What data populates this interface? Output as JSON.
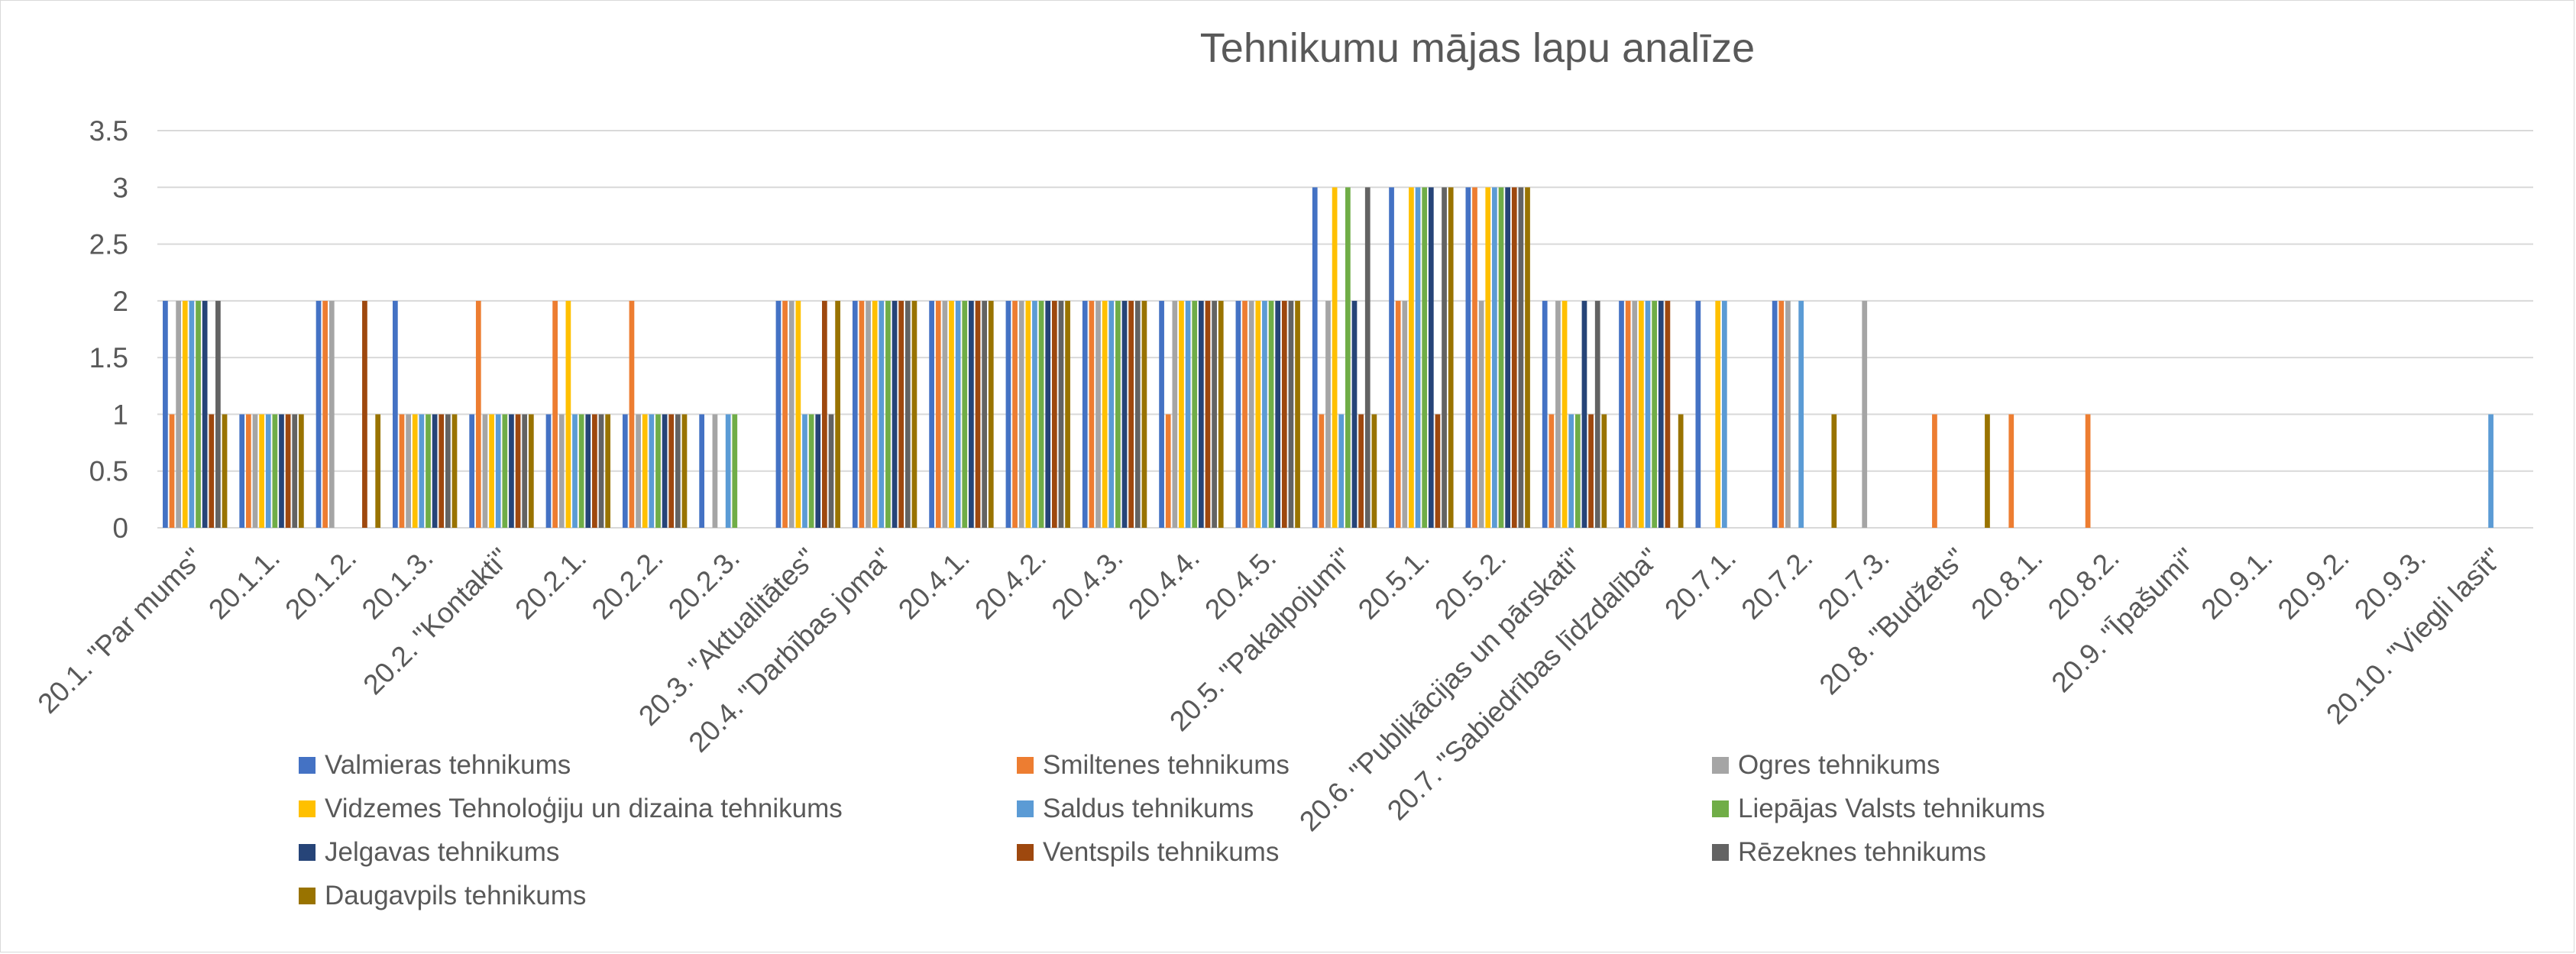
{
  "chart_data": {
    "type": "bar",
    "title": "Tehnikumu mājas lapu analīze",
    "xlabel": "",
    "ylabel": "",
    "ylim": [
      0,
      3.5
    ],
    "yticks": [
      0,
      0.5,
      1,
      1.5,
      2,
      2.5,
      3,
      3.5
    ],
    "ytick_labels": [
      "0",
      "0.5",
      "1",
      "1.5",
      "2",
      "2.5",
      "3",
      "3.5"
    ],
    "grid": true,
    "legend_position": "bottom",
    "categories": [
      "20.1. \"Par mums\"",
      "20.1.1.",
      "20.1.2.",
      "20.1.3.",
      "20.2. \"Kontakti\"",
      "20.2.1.",
      "20.2.2.",
      "20.2.3.",
      "20.3. \"Aktualitātes\"",
      "20.4. \"Darbības joma\"",
      "20.4.1.",
      "20.4.2.",
      "20.4.3.",
      "20.4.4.",
      "20.4.5.",
      "20.5. \"Pakalpojumi\"",
      "20.5.1.",
      "20.5.2.",
      "20.6. \"Publikācijas un pārskati\"",
      "20.7. \"Sabiedrības līdzdalība\"",
      "20.7.1.",
      "20.7.2.",
      "20.7.3.",
      "20.8. \"Budžets\"",
      "20.8.1.",
      "20.8.2.",
      "20.9. \"Īpašumi\"",
      "20.9.1.",
      "20.9.2.",
      "20.9.3.",
      "20.10. \"Viegli lasīt\""
    ],
    "series": [
      {
        "name": "Valmieras tehnikums",
        "color": "#4472C4",
        "values": [
          2,
          1,
          2,
          2,
          1,
          1,
          1,
          1,
          2,
          2,
          2,
          2,
          2,
          2,
          2,
          3,
          3,
          3,
          2,
          2,
          2,
          2,
          0,
          0,
          0,
          0,
          0,
          0,
          0,
          0,
          0
        ]
      },
      {
        "name": "Smiltenes tehnikums",
        "color": "#ED7D31",
        "values": [
          1,
          1,
          2,
          1,
          2,
          2,
          2,
          0,
          2,
          2,
          2,
          2,
          2,
          1,
          2,
          1,
          2,
          3,
          1,
          2,
          0,
          2,
          0,
          1,
          1,
          1,
          0,
          0,
          0,
          0,
          0
        ]
      },
      {
        "name": "Ogres tehnikums",
        "color": "#A5A5A5",
        "values": [
          2,
          1,
          2,
          1,
          1,
          1,
          1,
          1,
          2,
          2,
          2,
          2,
          2,
          2,
          2,
          2,
          2,
          2,
          2,
          2,
          0,
          2,
          2,
          0,
          0,
          0,
          0,
          0,
          0,
          0,
          0
        ]
      },
      {
        "name": "Vidzemes Tehnoloģiju un dizaina tehnikums",
        "color": "#FFC000",
        "values": [
          2,
          1,
          0,
          1,
          1,
          2,
          1,
          0,
          2,
          2,
          2,
          2,
          2,
          2,
          2,
          3,
          3,
          3,
          2,
          2,
          2,
          0,
          0,
          0,
          0,
          0,
          0,
          0,
          0,
          0,
          0
        ]
      },
      {
        "name": "Saldus tehnikums",
        "color": "#5B9BD5",
        "values": [
          2,
          1,
          0,
          1,
          1,
          1,
          1,
          1,
          1,
          2,
          2,
          2,
          2,
          2,
          2,
          1,
          3,
          3,
          1,
          2,
          2,
          2,
          0,
          0,
          0,
          0,
          0,
          0,
          0,
          0,
          1
        ]
      },
      {
        "name": "Liepājas Valsts tehnikums",
        "color": "#70AD47",
        "values": [
          2,
          1,
          0,
          1,
          1,
          1,
          1,
          1,
          1,
          2,
          2,
          2,
          2,
          2,
          2,
          3,
          3,
          3,
          1,
          2,
          0,
          0,
          0,
          0,
          0,
          0,
          0,
          0,
          0,
          0,
          0
        ]
      },
      {
        "name": "Jelgavas tehnikums",
        "color": "#264478",
        "values": [
          2,
          1,
          0,
          1,
          1,
          1,
          1,
          0,
          1,
          2,
          2,
          2,
          2,
          2,
          2,
          2,
          3,
          3,
          2,
          2,
          0,
          0,
          0,
          0,
          0,
          0,
          0,
          0,
          0,
          0,
          0
        ]
      },
      {
        "name": "Ventspils tehnikums",
        "color": "#9E480E",
        "values": [
          1,
          1,
          2,
          1,
          1,
          1,
          1,
          0,
          2,
          2,
          2,
          2,
          2,
          2,
          2,
          1,
          1,
          3,
          1,
          2,
          0,
          0,
          0,
          0,
          0,
          0,
          0,
          0,
          0,
          0,
          0
        ]
      },
      {
        "name": "Rēzeknes tehnikums",
        "color": "#636363",
        "values": [
          2,
          1,
          0,
          1,
          1,
          1,
          1,
          0,
          1,
          2,
          2,
          2,
          2,
          2,
          2,
          3,
          3,
          3,
          2,
          0,
          0,
          0,
          0,
          0,
          0,
          0,
          0,
          0,
          0,
          0,
          0
        ]
      },
      {
        "name": "Daugavpils tehnikums",
        "color": "#997300",
        "values": [
          1,
          1,
          1,
          1,
          1,
          1,
          1,
          0,
          2,
          2,
          2,
          2,
          2,
          2,
          2,
          1,
          3,
          3,
          1,
          1,
          0,
          1,
          0,
          1,
          0,
          0,
          0,
          0,
          0,
          0,
          0
        ]
      }
    ]
  }
}
